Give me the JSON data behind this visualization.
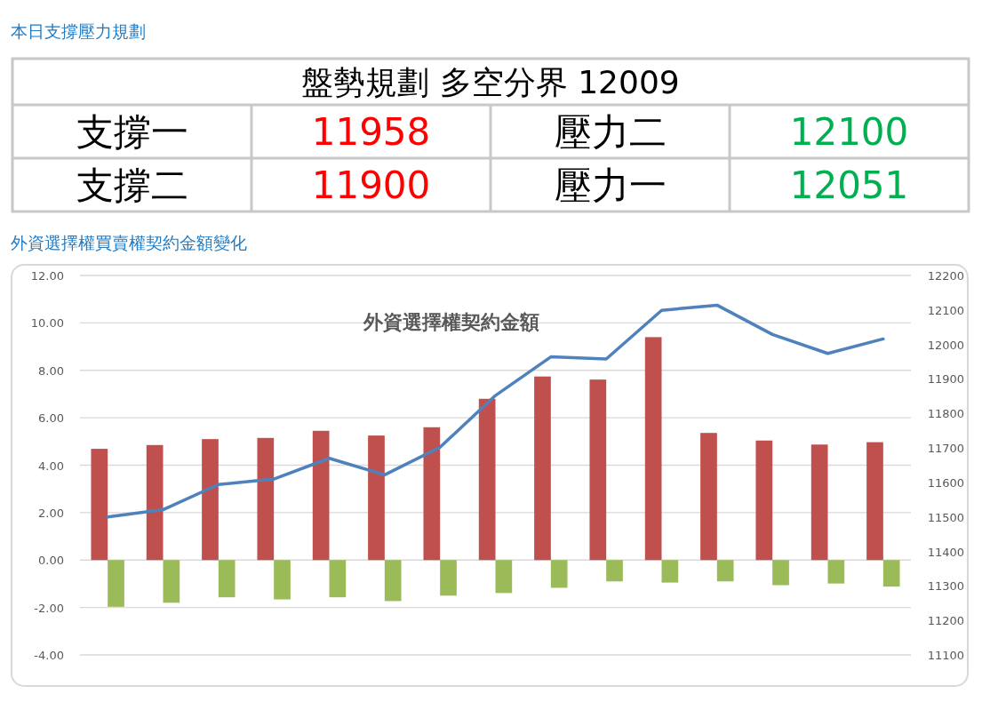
{
  "chart_data": [
    {
      "type": "other",
      "title": "本日支撐壓力規劃",
      "subtitle": "盤勢規劃 多空分界 12009",
      "annotations": [
        "支撐一",
        "11958",
        "壓力二",
        "12100",
        "支撐二",
        "11900",
        "壓力一",
        "12051"
      ],
      "colors": [
        "#000000",
        "#ff0000",
        "#000000",
        "#00b050",
        "#000000",
        "#ff0000",
        "#000000",
        "#00b050"
      ]
    },
    {
      "type": "bar",
      "title": "外資選擇權買賣權契約金額變化",
      "subtitle": "外資選擇權契約金額",
      "categories": [
        null,
        null,
        null,
        null,
        null,
        null,
        null,
        null,
        null,
        null,
        null,
        null,
        null,
        null,
        null
      ],
      "series": [
        {
          "type": "bar",
          "color": "#c0504d",
          "values": [
            4.69,
            4.85,
            5.1,
            5.15,
            5.45,
            5.25,
            5.6,
            6.8,
            7.74,
            7.61,
            9.4,
            5.36,
            5.04,
            4.87,
            4.97
          ]
        },
        {
          "type": "bar",
          "color": "#9bbb59",
          "values": [
            -1.97,
            -1.8,
            -1.57,
            -1.66,
            -1.57,
            -1.73,
            -1.5,
            -1.39,
            -1.17,
            -0.9,
            -0.95,
            -0.9,
            -1.06,
            -0.99,
            -1.12
          ]
        },
        {
          "type": "line",
          "axis": "y2",
          "color": "#4f81bd",
          "values": [
            11500,
            11521,
            11594,
            11610,
            11670,
            11622,
            11702,
            11852,
            11964,
            11958,
            12099,
            12114,
            12029,
            11974,
            12016
          ]
        }
      ],
      "ylim": [
        -4,
        12
      ],
      "yticks": [
        {
          "value": -4,
          "label": "-4.00"
        },
        {
          "value": -2,
          "label": "-2.00"
        },
        {
          "value": 0,
          "label": "0.00"
        },
        {
          "value": 2,
          "label": "2.00"
        },
        {
          "value": 4,
          "label": "4.00"
        },
        {
          "value": 6,
          "label": "6.00"
        },
        {
          "value": 8,
          "label": "8.00"
        },
        {
          "value": 10,
          "label": "10.00"
        },
        {
          "value": 12,
          "label": "12.00"
        }
      ],
      "y2lim": [
        11100,
        12200
      ],
      "y2ticks": [
        11100,
        11200,
        11300,
        11400,
        11500,
        11600,
        11700,
        11800,
        11900,
        12000,
        12100,
        12200
      ],
      "grid": "y",
      "marker": "none",
      "line_style": "solid"
    }
  ]
}
